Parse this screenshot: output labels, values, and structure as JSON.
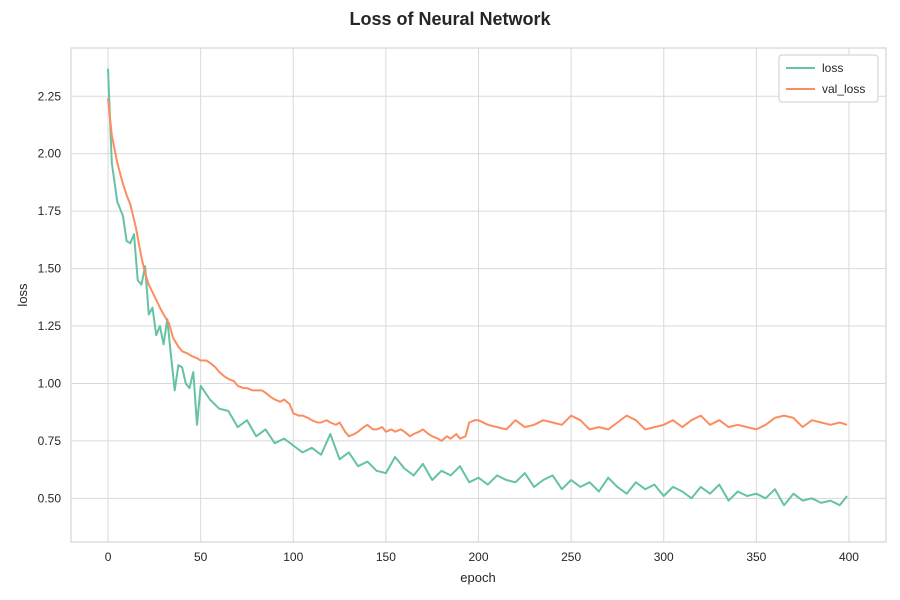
{
  "chart_data": {
    "type": "line",
    "title": "Loss of Neural Network",
    "xlabel": "epoch",
    "ylabel": "loss",
    "xlim": [
      -20,
      420
    ],
    "ylim": [
      0.31,
      2.46
    ],
    "x_ticks": [
      0,
      50,
      100,
      150,
      200,
      250,
      300,
      350,
      400
    ],
    "y_ticks": [
      0.5,
      0.75,
      1.0,
      1.25,
      1.5,
      1.75,
      2.0,
      2.25
    ],
    "x_tick_labels": [
      "0",
      "50",
      "100",
      "150",
      "200",
      "250",
      "300",
      "350",
      "400"
    ],
    "y_tick_labels": [
      "0.50",
      "0.75",
      "1.00",
      "1.25",
      "1.50",
      "1.75",
      "2.00",
      "2.25"
    ],
    "grid": true,
    "legend_position": "top-right",
    "series": [
      {
        "name": "loss",
        "color": "#66c2a5",
        "x": [
          0,
          2,
          5,
          8,
          10,
          12,
          14,
          16,
          18,
          20,
          22,
          24,
          26,
          28,
          30,
          32,
          34,
          36,
          38,
          40,
          42,
          44,
          46,
          48,
          50,
          55,
          60,
          65,
          70,
          75,
          80,
          85,
          90,
          95,
          100,
          105,
          110,
          115,
          120,
          125,
          130,
          135,
          140,
          145,
          150,
          155,
          160,
          165,
          170,
          175,
          180,
          185,
          190,
          195,
          200,
          205,
          210,
          215,
          220,
          225,
          230,
          235,
          240,
          245,
          250,
          255,
          260,
          265,
          270,
          275,
          280,
          285,
          290,
          295,
          300,
          305,
          310,
          315,
          320,
          325,
          330,
          335,
          340,
          345,
          350,
          355,
          360,
          365,
          370,
          375,
          380,
          385,
          390,
          395,
          399
        ],
        "y": [
          2.37,
          1.96,
          1.79,
          1.73,
          1.62,
          1.61,
          1.65,
          1.45,
          1.43,
          1.51,
          1.3,
          1.33,
          1.21,
          1.25,
          1.17,
          1.28,
          1.12,
          0.97,
          1.08,
          1.07,
          1.0,
          0.98,
          1.05,
          0.82,
          0.99,
          0.93,
          0.89,
          0.88,
          0.81,
          0.84,
          0.77,
          0.8,
          0.74,
          0.76,
          0.73,
          0.7,
          0.72,
          0.69,
          0.78,
          0.67,
          0.7,
          0.64,
          0.66,
          0.62,
          0.61,
          0.68,
          0.63,
          0.6,
          0.65,
          0.58,
          0.62,
          0.6,
          0.64,
          0.57,
          0.59,
          0.56,
          0.6,
          0.58,
          0.57,
          0.61,
          0.55,
          0.58,
          0.6,
          0.54,
          0.58,
          0.55,
          0.57,
          0.53,
          0.59,
          0.55,
          0.52,
          0.57,
          0.54,
          0.56,
          0.51,
          0.55,
          0.53,
          0.5,
          0.55,
          0.52,
          0.56,
          0.49,
          0.53,
          0.51,
          0.52,
          0.5,
          0.54,
          0.47,
          0.52,
          0.49,
          0.5,
          0.48,
          0.49,
          0.47,
          0.51
        ]
      },
      {
        "name": "val_loss",
        "color": "#fc8d62",
        "x": [
          0,
          2,
          5,
          8,
          10,
          12,
          15,
          18,
          20,
          22,
          25,
          28,
          30,
          33,
          35,
          38,
          40,
          43,
          45,
          48,
          50,
          53,
          55,
          58,
          60,
          63,
          65,
          68,
          70,
          73,
          75,
          78,
          80,
          83,
          85,
          88,
          90,
          93,
          95,
          98,
          100,
          103,
          105,
          108,
          110,
          113,
          115,
          118,
          120,
          123,
          125,
          128,
          130,
          133,
          135,
          138,
          140,
          143,
          145,
          148,
          150,
          153,
          155,
          158,
          160,
          163,
          165,
          168,
          170,
          173,
          175,
          178,
          180,
          183,
          185,
          188,
          190,
          193,
          195,
          198,
          200,
          205,
          210,
          215,
          220,
          225,
          230,
          235,
          240,
          245,
          250,
          255,
          260,
          265,
          270,
          275,
          280,
          285,
          290,
          295,
          300,
          305,
          310,
          315,
          320,
          325,
          330,
          335,
          340,
          345,
          350,
          355,
          360,
          365,
          370,
          375,
          380,
          385,
          390,
          395,
          399
        ],
        "y": [
          2.24,
          2.08,
          1.96,
          1.87,
          1.82,
          1.78,
          1.68,
          1.55,
          1.48,
          1.43,
          1.38,
          1.33,
          1.3,
          1.26,
          1.2,
          1.16,
          1.14,
          1.13,
          1.12,
          1.11,
          1.1,
          1.1,
          1.09,
          1.07,
          1.05,
          1.03,
          1.02,
          1.01,
          0.99,
          0.98,
          0.98,
          0.97,
          0.97,
          0.97,
          0.96,
          0.94,
          0.93,
          0.92,
          0.93,
          0.91,
          0.87,
          0.86,
          0.86,
          0.85,
          0.84,
          0.83,
          0.83,
          0.84,
          0.83,
          0.82,
          0.83,
          0.79,
          0.77,
          0.78,
          0.79,
          0.81,
          0.82,
          0.8,
          0.8,
          0.81,
          0.79,
          0.8,
          0.79,
          0.8,
          0.79,
          0.77,
          0.78,
          0.79,
          0.8,
          0.78,
          0.77,
          0.76,
          0.75,
          0.77,
          0.76,
          0.78,
          0.76,
          0.77,
          0.83,
          0.84,
          0.84,
          0.82,
          0.81,
          0.8,
          0.84,
          0.81,
          0.82,
          0.84,
          0.83,
          0.82,
          0.86,
          0.84,
          0.8,
          0.81,
          0.8,
          0.83,
          0.86,
          0.84,
          0.8,
          0.81,
          0.82,
          0.84,
          0.81,
          0.84,
          0.86,
          0.82,
          0.84,
          0.81,
          0.82,
          0.81,
          0.8,
          0.82,
          0.85,
          0.86,
          0.85,
          0.81,
          0.84,
          0.83,
          0.82,
          0.83,
          0.82
        ]
      }
    ]
  }
}
